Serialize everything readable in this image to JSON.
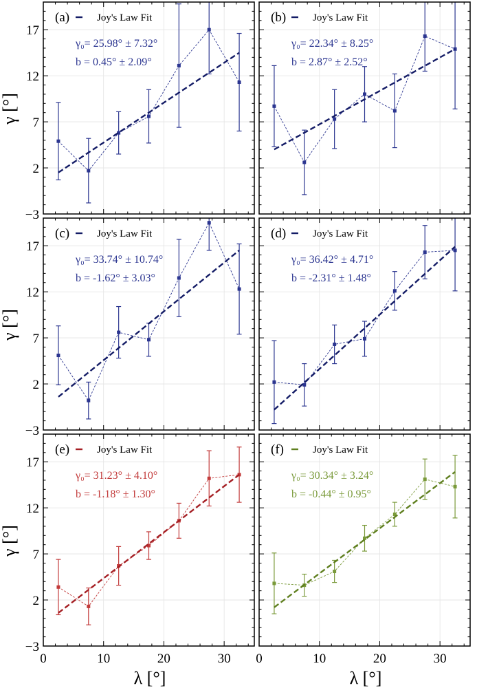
{
  "figure": {
    "shared_xlabel": "λ [°]",
    "shared_ylabel": "γ [°]",
    "xlim": [
      0,
      35
    ],
    "ylim": [
      -3,
      20
    ],
    "xticks": [
      0,
      10,
      20,
      30
    ],
    "yticks": [
      -3,
      2,
      7,
      12,
      17
    ],
    "x_tick_labels": [
      "0",
      "10",
      "20",
      "30"
    ],
    "y_tick_labels": [
      "−3",
      "2",
      "7",
      "12",
      "17"
    ],
    "grid": true
  },
  "chart_data": [
    {
      "type": "scatter",
      "panel_label": "(a)",
      "legend_label": "Joy's Law Fit",
      "color": "#2b3590",
      "fit_color": "#141c66",
      "annotation_gamma": "γ₀= 25.98° ± 7.32°",
      "annotation_b": "b = 0.45° ± 2.09°",
      "x": [
        2.5,
        7.5,
        12.5,
        17.5,
        22.5,
        27.5,
        32.5
      ],
      "y": [
        4.9,
        1.7,
        5.8,
        7.6,
        13.1,
        17.0,
        11.3
      ],
      "yerr": [
        4.2,
        3.5,
        2.3,
        2.9,
        6.7,
        4.8,
        5.3
      ],
      "fit": {
        "x": [
          2.5,
          32.5
        ],
        "y": [
          1.5,
          14.5
        ]
      }
    },
    {
      "type": "scatter",
      "panel_label": "(b)",
      "legend_label": "Joy's Law Fit",
      "color": "#2b3590",
      "fit_color": "#141c66",
      "annotation_gamma": "γ₀= 22.34° ± 8.25°",
      "annotation_b": "b = 2.87° ± 2.52°",
      "x": [
        2.5,
        7.5,
        12.5,
        17.5,
        22.5,
        27.5,
        32.5
      ],
      "y": [
        8.7,
        2.6,
        7.3,
        10.0,
        8.2,
        16.3,
        14.9
      ],
      "yerr": [
        4.4,
        3.5,
        3.2,
        3.0,
        4.0,
        3.8,
        6.5
      ],
      "fit": {
        "x": [
          2.5,
          32.5
        ],
        "y": [
          4.0,
          14.9
        ]
      }
    },
    {
      "type": "scatter",
      "panel_label": "(c)",
      "legend_label": "Joy's Law Fit",
      "color": "#2b3590",
      "fit_color": "#141c66",
      "annotation_gamma": "γ₀= 33.74° ± 10.74°",
      "annotation_b": "b = -1.62° ± 3.03°",
      "x": [
        2.5,
        7.5,
        12.5,
        17.5,
        22.5,
        27.5,
        32.5
      ],
      "y": [
        5.1,
        0.2,
        7.6,
        6.8,
        13.5,
        19.5,
        12.3
      ],
      "yerr": [
        3.2,
        2.0,
        2.8,
        1.8,
        4.2,
        3.0,
        4.9
      ],
      "fit": {
        "x": [
          2.5,
          32.5
        ],
        "y": [
          0.6,
          16.5
        ]
      }
    },
    {
      "type": "scatter",
      "panel_label": "(d)",
      "legend_label": "Joy's Law Fit",
      "color": "#2b3590",
      "fit_color": "#141c66",
      "annotation_gamma": "γ₀= 36.42° ± 4.71°",
      "annotation_b": "b = -2.31° ± 1.48°",
      "x": [
        2.5,
        7.5,
        12.5,
        17.5,
        22.5,
        27.5,
        32.5
      ],
      "y": [
        2.2,
        1.9,
        6.3,
        6.9,
        12.1,
        16.3,
        16.5
      ],
      "yerr": [
        4.5,
        2.3,
        2.1,
        1.9,
        2.1,
        2.9,
        4.4
      ],
      "fit": {
        "x": [
          2.5,
          32.5
        ],
        "y": [
          -0.8,
          16.9
        ]
      }
    },
    {
      "type": "scatter",
      "panel_label": "(e)",
      "legend_label": "Joy's Law Fit",
      "color": "#c23a3a",
      "fit_color": "#a51f24",
      "annotation_gamma": "γ₀= 31.23° ± 4.10°",
      "annotation_b": "b = -1.18° ± 1.30°",
      "x": [
        2.5,
        7.5,
        12.5,
        17.5,
        22.5,
        27.5,
        32.5
      ],
      "y": [
        3.4,
        1.3,
        5.7,
        7.9,
        10.6,
        15.2,
        15.6
      ],
      "yerr": [
        3.0,
        2.0,
        2.1,
        1.5,
        1.9,
        3.0,
        3.0
      ],
      "fit": {
        "x": [
          2.5,
          32.5
        ],
        "y": [
          0.6,
          15.6
        ]
      }
    },
    {
      "type": "scatter",
      "panel_label": "(f)",
      "legend_label": "Joy's Law Fit",
      "color": "#7a9a3a",
      "fit_color": "#5f7f1f",
      "annotation_gamma": "γ₀= 30.34° ± 3.24°",
      "annotation_b": "b = -0.44° ± 0.95°",
      "x": [
        2.5,
        7.5,
        12.5,
        17.5,
        22.5,
        27.5,
        32.5
      ],
      "y": [
        3.8,
        3.6,
        5.1,
        8.7,
        11.3,
        15.1,
        14.3
      ],
      "yerr": [
        3.3,
        1.2,
        1.2,
        1.4,
        1.3,
        2.2,
        3.4
      ],
      "fit": {
        "x": [
          2.5,
          32.5
        ],
        "y": [
          1.2,
          15.9
        ]
      }
    }
  ]
}
